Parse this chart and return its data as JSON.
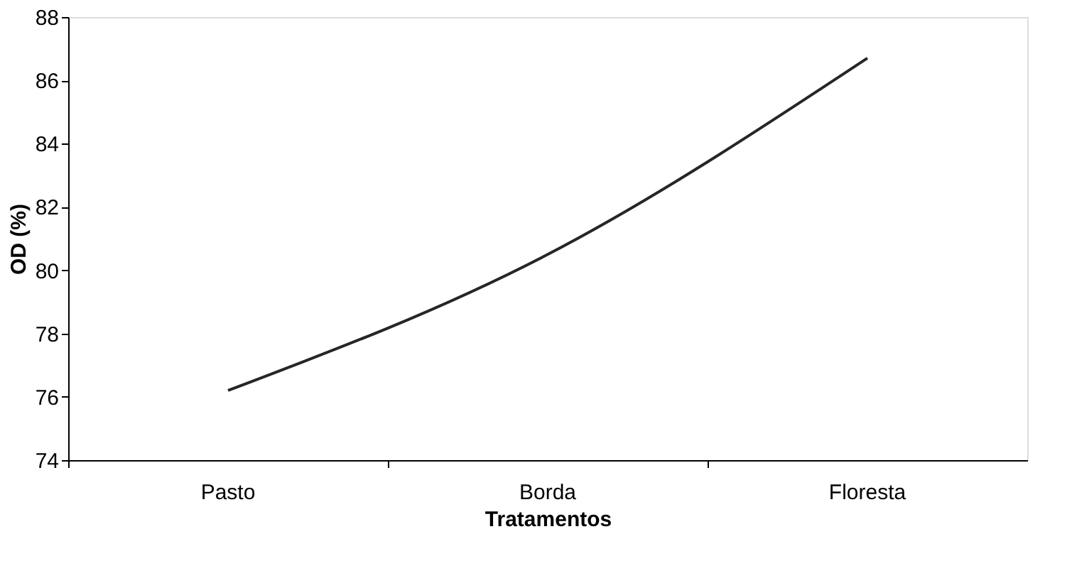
{
  "chart_data": {
    "type": "line",
    "xlabel": "Tratamentos",
    "ylabel": "OD (%)",
    "categories": [
      "Pasto",
      "Borda",
      "Floresta"
    ],
    "series": [
      {
        "color": "#262626",
        "values": [
          76.2,
          80.5,
          86.7
        ]
      }
    ],
    "ylim": [
      74,
      88
    ],
    "yticks": [
      74,
      76,
      78,
      80,
      82,
      84,
      86,
      88
    ],
    "grid": false,
    "legend": false,
    "marker": "none",
    "line_style": "solid"
  }
}
